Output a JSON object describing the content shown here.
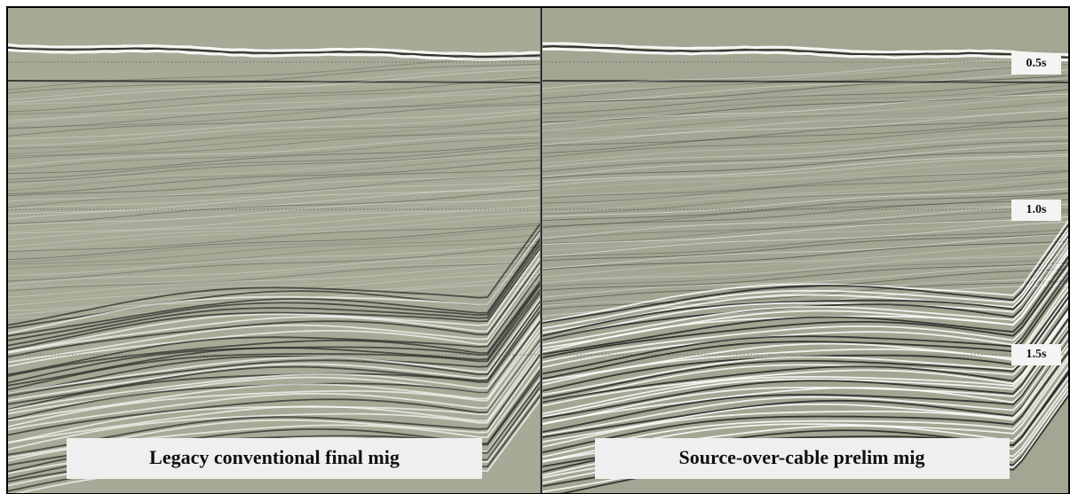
{
  "panels": [
    {
      "caption": "Legacy conventional final mig"
    },
    {
      "caption": "Source-over-cable prelim mig"
    }
  ],
  "time_labels": [
    "0.5s",
    "1.0s",
    "1.5s"
  ]
}
